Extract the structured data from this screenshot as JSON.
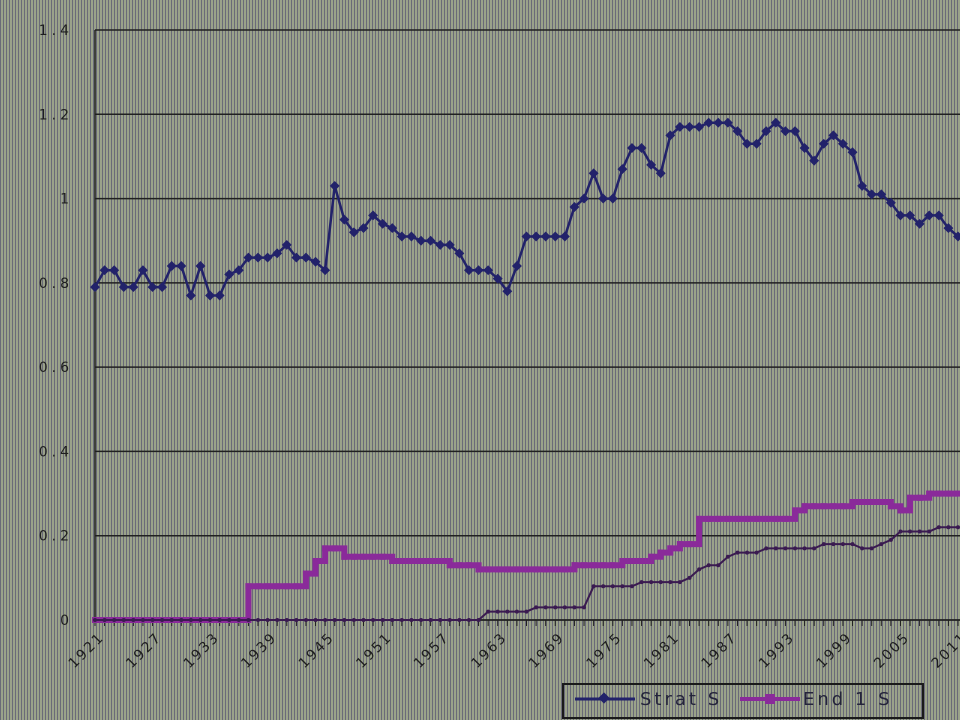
{
  "chart_data": {
    "type": "line",
    "ylim": [
      0,
      1.4
    ],
    "yticks": [
      "0",
      "0.2",
      "0.4",
      "0.6",
      "0.8",
      "1",
      "1.2",
      "1.4"
    ],
    "xticks": [
      "1921",
      "1927",
      "1933",
      "1939",
      "1945",
      "1951",
      "1957",
      "1963",
      "1969",
      "1975",
      "1981",
      "1987",
      "1993",
      "1999",
      "2005",
      "2011"
    ],
    "x": [
      1921,
      1922,
      1923,
      1924,
      1925,
      1926,
      1927,
      1928,
      1929,
      1930,
      1931,
      1932,
      1933,
      1934,
      1935,
      1936,
      1937,
      1938,
      1939,
      1940,
      1941,
      1942,
      1943,
      1944,
      1945,
      1946,
      1947,
      1948,
      1949,
      1950,
      1951,
      1952,
      1953,
      1954,
      1955,
      1956,
      1957,
      1958,
      1959,
      1960,
      1961,
      1962,
      1963,
      1964,
      1965,
      1966,
      1967,
      1968,
      1969,
      1970,
      1971,
      1972,
      1973,
      1974,
      1975,
      1976,
      1977,
      1978,
      1979,
      1980,
      1981,
      1982,
      1983,
      1984,
      1985,
      1986,
      1987,
      1988,
      1989,
      1990,
      1991,
      1992,
      1993,
      1994,
      1995,
      1996,
      1997,
      1998,
      1999,
      2000,
      2001,
      2002,
      2003,
      2004,
      2005,
      2006,
      2007,
      2008,
      2009,
      2010,
      2011
    ],
    "series": [
      {
        "name": "Strat S",
        "color": "#22226a",
        "marker": "diamond",
        "values": [
          0.79,
          0.83,
          0.83,
          0.79,
          0.79,
          0.83,
          0.79,
          0.79,
          0.84,
          0.84,
          0.77,
          0.84,
          0.77,
          0.77,
          0.82,
          0.83,
          0.86,
          0.86,
          0.86,
          0.87,
          0.89,
          0.86,
          0.86,
          0.85,
          0.83,
          1.03,
          0.95,
          0.92,
          0.93,
          0.96,
          0.94,
          0.93,
          0.91,
          0.91,
          0.9,
          0.9,
          0.89,
          0.89,
          0.87,
          0.83,
          0.83,
          0.83,
          0.81,
          0.78,
          0.84,
          0.91,
          0.91,
          0.91,
          0.91,
          0.91,
          0.98,
          1.0,
          1.06,
          1.0,
          1.0,
          1.07,
          1.12,
          1.12,
          1.08,
          1.06,
          1.15,
          1.17,
          1.17,
          1.17,
          1.18,
          1.18,
          1.18,
          1.16,
          1.13,
          1.13,
          1.16,
          1.18,
          1.16,
          1.16,
          1.12,
          1.09,
          1.13,
          1.15,
          1.13,
          1.11,
          1.03,
          1.01,
          1.01,
          0.99,
          0.96,
          0.96,
          0.94,
          0.96,
          0.96,
          0.93,
          0.91
        ]
      },
      {
        "name": "End 1 S",
        "color": "#8a2a9a",
        "marker": "square",
        "values": [
          0.0,
          0.0,
          0.0,
          0.0,
          0.0,
          0.0,
          0.0,
          0.0,
          0.0,
          0.0,
          0.0,
          0.0,
          0.0,
          0.0,
          0.0,
          0.0,
          0.08,
          0.08,
          0.08,
          0.08,
          0.08,
          0.08,
          0.11,
          0.14,
          0.17,
          0.17,
          0.15,
          0.15,
          0.15,
          0.15,
          0.15,
          0.14,
          0.14,
          0.14,
          0.14,
          0.14,
          0.14,
          0.13,
          0.13,
          0.13,
          0.12,
          0.12,
          0.12,
          0.12,
          0.12,
          0.12,
          0.12,
          0.12,
          0.12,
          0.12,
          0.13,
          0.13,
          0.13,
          0.13,
          0.13,
          0.14,
          0.14,
          0.14,
          0.15,
          0.16,
          0.17,
          0.18,
          0.18,
          0.24,
          0.24,
          0.24,
          0.24,
          0.24,
          0.24,
          0.24,
          0.24,
          0.24,
          0.24,
          0.26,
          0.27,
          0.27,
          0.27,
          0.27,
          0.27,
          0.28,
          0.28,
          0.28,
          0.28,
          0.27,
          0.26,
          0.29,
          0.29,
          0.3,
          0.3,
          0.3,
          0.3
        ]
      },
      {
        "name": "",
        "color": "#3a1a50",
        "marker": "dot",
        "values": [
          0.0,
          0.0,
          0.0,
          0.0,
          0.0,
          0.0,
          0.0,
          0.0,
          0.0,
          0.0,
          0.0,
          0.0,
          0.0,
          0.0,
          0.0,
          0.0,
          0.0,
          0.0,
          0.0,
          0.0,
          0.0,
          0.0,
          0.0,
          0.0,
          0.0,
          0.0,
          0.0,
          0.0,
          0.0,
          0.0,
          0.0,
          0.0,
          0.0,
          0.0,
          0.0,
          0.0,
          0.0,
          0.0,
          0.0,
          0.0,
          0.0,
          0.02,
          0.02,
          0.02,
          0.02,
          0.02,
          0.03,
          0.03,
          0.03,
          0.03,
          0.03,
          0.03,
          0.08,
          0.08,
          0.08,
          0.08,
          0.08,
          0.09,
          0.09,
          0.09,
          0.09,
          0.09,
          0.1,
          0.12,
          0.13,
          0.13,
          0.15,
          0.16,
          0.16,
          0.16,
          0.17,
          0.17,
          0.17,
          0.17,
          0.17,
          0.17,
          0.18,
          0.18,
          0.18,
          0.18,
          0.17,
          0.17,
          0.18,
          0.19,
          0.21,
          0.21,
          0.21,
          0.21,
          0.22,
          0.22,
          0.22
        ]
      }
    ],
    "legend": {
      "placement": "bottom",
      "items": [
        "Strat S",
        "End 1 S"
      ]
    },
    "grid": true
  }
}
